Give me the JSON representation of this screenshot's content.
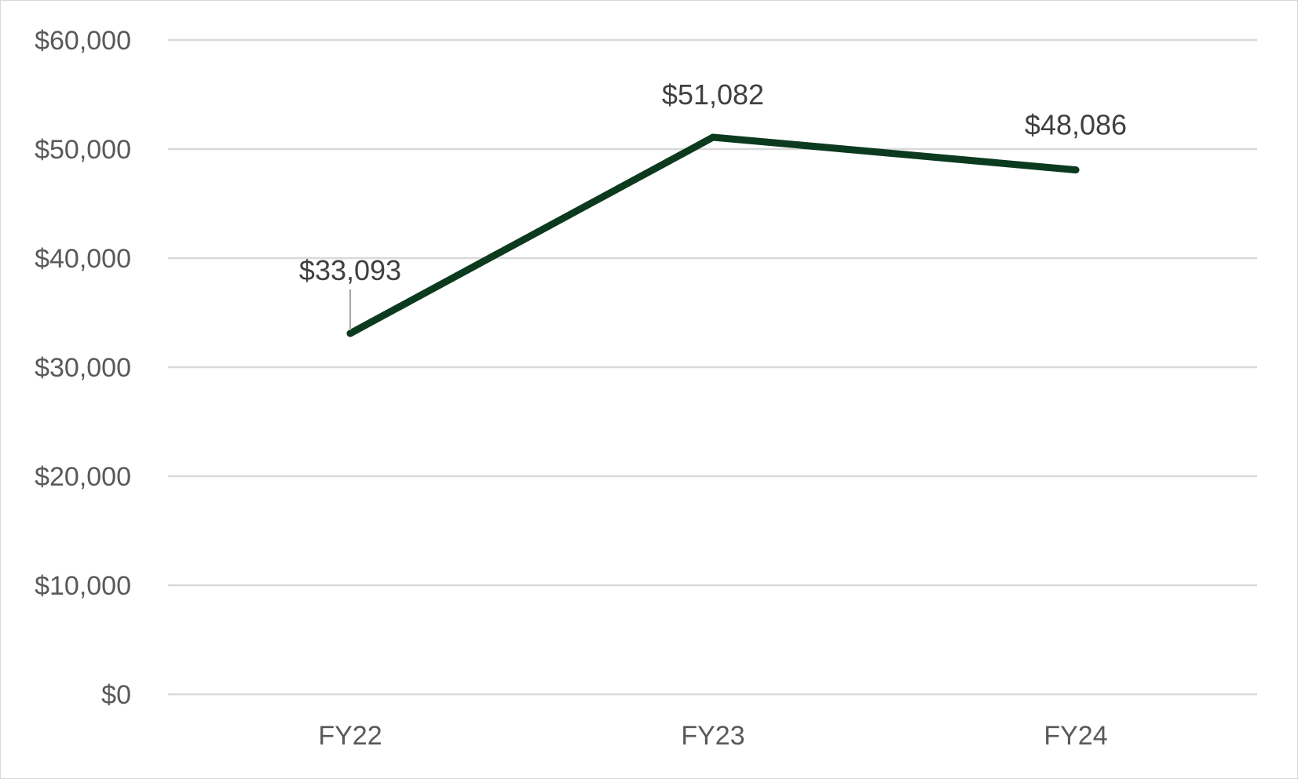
{
  "chart_data": {
    "type": "line",
    "title": "",
    "xlabel": "",
    "ylabel": "",
    "categories": [
      "FY22",
      "FY23",
      "FY24"
    ],
    "series": [
      {
        "values": [
          33093,
          51082,
          48086
        ],
        "data_labels": [
          "$33,093",
          "$51,082",
          "$48,086"
        ],
        "color": "#0b3a1f"
      }
    ],
    "ylim": [
      0,
      60000
    ],
    "y_ticks": [
      0,
      10000,
      20000,
      30000,
      40000,
      50000,
      60000
    ],
    "y_tick_labels": [
      "$0",
      "$10,000",
      "$20,000",
      "$30,000",
      "$40,000",
      "$50,000",
      "$60,000"
    ],
    "grid": true,
    "legend": "none",
    "colors": {
      "grid": "#d9d9d9",
      "tick_text": "#595959",
      "label_text": "#404040",
      "leader_line": "#a6a6a6"
    }
  }
}
